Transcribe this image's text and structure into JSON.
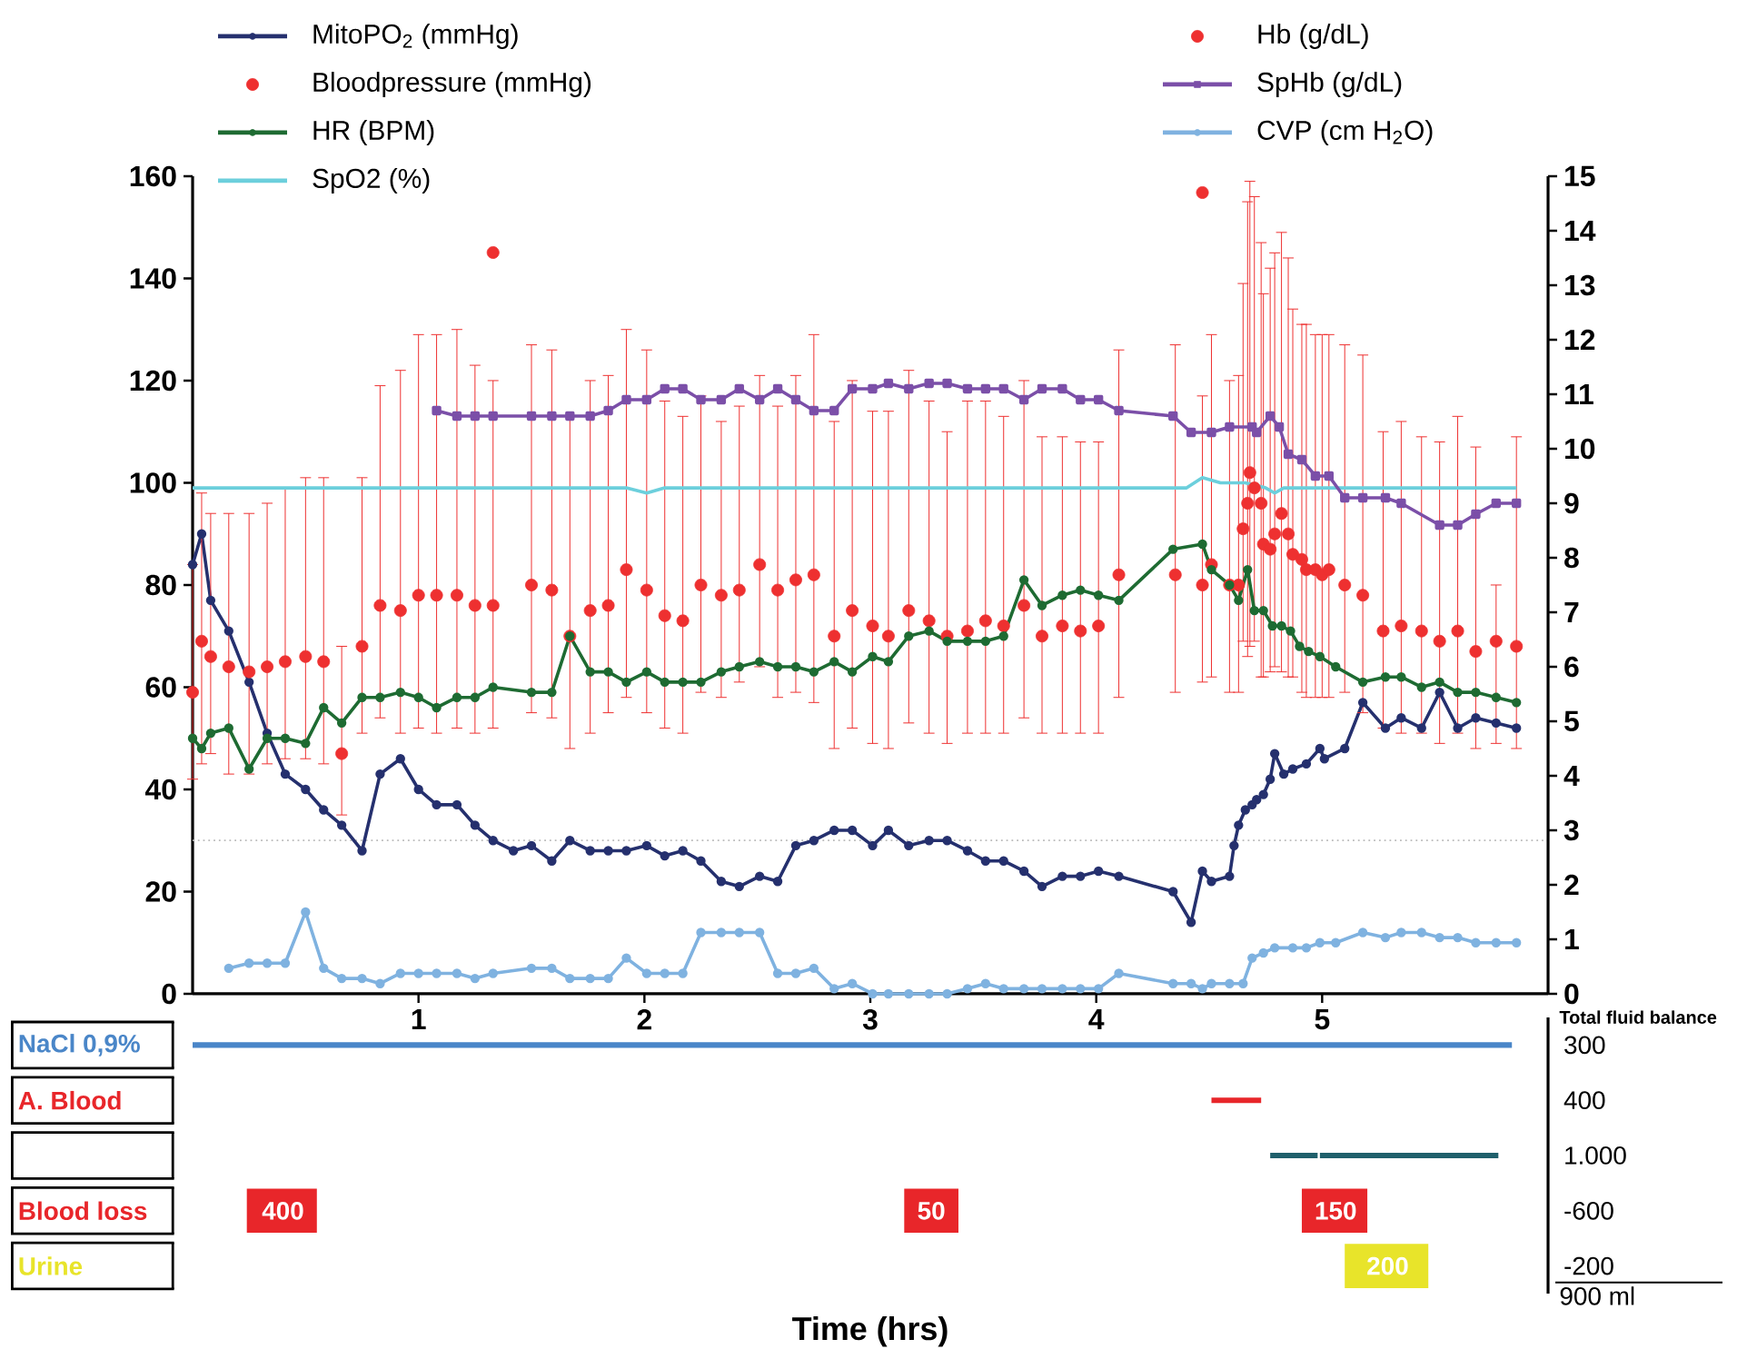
{
  "chart_data": [
    {
      "type": "line",
      "xlim": [
        0,
        6
      ],
      "xticks": [
        1,
        2,
        3,
        4,
        5
      ],
      "ylim": [
        0,
        160
      ],
      "yticks": [
        0,
        20,
        40,
        60,
        80,
        100,
        120,
        140,
        160
      ],
      "y2lim": [
        0,
        15
      ],
      "y2ticks": [
        0,
        1,
        2,
        3,
        4,
        5,
        6,
        7,
        8,
        9,
        10,
        11,
        12,
        13,
        14,
        15
      ],
      "legend": "top",
      "ref_lines": [
        {
          "axis": "y",
          "value": 30,
          "color": "#bbbbbb",
          "line_style": "dotted"
        }
      ],
      "series": [
        {
          "name": "MitoPO$_{2}$ (mmHg)",
          "color": "#25306e",
          "marker": "circle",
          "x": [
            0,
            0.04,
            0.08,
            0.16,
            0.25,
            0.33,
            0.41,
            0.5,
            0.58,
            0.66,
            0.75,
            0.83,
            0.92,
            1.0,
            1.08,
            1.17,
            1.25,
            1.33,
            1.42,
            1.5,
            1.59,
            1.67,
            1.76,
            1.84,
            1.92,
            2.01,
            2.09,
            2.17,
            2.25,
            2.34,
            2.42,
            2.51,
            2.59,
            2.67,
            2.75,
            2.84,
            2.92,
            3.01,
            3.08,
            3.17,
            3.26,
            3.34,
            3.43,
            3.51,
            3.59,
            3.68,
            3.76,
            3.85,
            3.93,
            4.01,
            4.1,
            4.34,
            4.42,
            4.47,
            4.51,
            4.59,
            4.61,
            4.63,
            4.66,
            4.69,
            4.71,
            4.74,
            4.77,
            4.79,
            4.83,
            4.87,
            4.93,
            4.99,
            5.01,
            5.1,
            5.18,
            5.28,
            5.35,
            5.44,
            5.52,
            5.6,
            5.68,
            5.77,
            5.86
          ],
          "values": [
            84,
            90,
            77,
            71,
            61,
            51,
            43,
            40,
            36,
            33,
            28,
            43,
            46,
            40,
            37,
            37,
            33,
            30,
            28,
            29,
            26,
            30,
            28,
            28,
            28,
            29,
            27,
            28,
            26,
            22,
            21,
            23,
            22,
            29,
            30,
            32,
            32,
            29,
            32,
            29,
            30,
            30,
            28,
            26,
            26,
            24,
            21,
            23,
            23,
            24,
            23,
            20,
            14,
            24,
            22,
            23,
            29,
            33,
            36,
            37,
            38,
            39,
            42,
            47,
            43,
            44,
            45,
            48,
            46,
            48,
            57,
            52,
            54,
            52,
            59,
            52,
            54,
            53,
            52
          ]
        },
        {
          "name": "Bloodpressure (mmHg)",
          "type": "scatter",
          "color": "#ee3030",
          "marker": "circle",
          "x": [
            0,
            0.04,
            0.08,
            0.16,
            0.25,
            0.33,
            0.41,
            0.5,
            0.58,
            0.66,
            0.75,
            0.83,
            0.92,
            1.0,
            1.08,
            1.17,
            1.25,
            1.33,
            1.5,
            1.59,
            1.67,
            1.76,
            1.84,
            1.92,
            2.01,
            2.09,
            2.17,
            2.25,
            2.34,
            2.42,
            2.51,
            2.59,
            2.67,
            2.75,
            2.84,
            2.92,
            3.01,
            3.08,
            3.17,
            3.26,
            3.34,
            3.43,
            3.51,
            3.59,
            3.68,
            3.76,
            3.85,
            3.93,
            4.01,
            4.1,
            4.35,
            4.47,
            4.51,
            4.59,
            4.63,
            4.65,
            4.67,
            4.68,
            4.7,
            4.73,
            4.74,
            4.77,
            4.79,
            4.82,
            4.85,
            4.87,
            4.91,
            4.93,
            4.97,
            5.0,
            5.03,
            5.1,
            5.18,
            5.27,
            5.35,
            5.44,
            5.52,
            5.6,
            5.68,
            5.77,
            5.86
          ],
          "values": [
            59,
            69,
            66,
            64,
            63,
            64,
            65,
            66,
            65,
            47,
            68,
            76,
            75,
            78,
            78,
            78,
            76,
            76,
            80,
            79,
            70,
            75,
            76,
            83,
            79,
            74,
            73,
            80,
            78,
            79,
            84,
            79,
            81,
            82,
            70,
            75,
            72,
            70,
            75,
            73,
            70,
            71,
            73,
            72,
            76,
            70,
            72,
            71,
            72,
            82,
            82,
            80,
            84,
            80,
            80,
            91,
            96,
            102,
            99,
            96,
            88,
            87,
            90,
            94,
            90,
            86,
            85,
            83,
            83,
            82,
            83,
            80,
            78,
            71,
            72,
            71,
            69,
            71,
            67,
            69,
            68
          ],
          "errors": [
            [
              42,
              84
            ],
            [
              45,
              98
            ],
            [
              47,
              94
            ],
            [
              43,
              94
            ],
            [
              43,
              94
            ],
            [
              45,
              96
            ],
            [
              46,
              99
            ],
            [
              46,
              101
            ],
            [
              45,
              101
            ],
            [
              35,
              68
            ],
            [
              51,
              101
            ],
            [
              54,
              119
            ],
            [
              51,
              122
            ],
            [
              52,
              129
            ],
            [
              51,
              129
            ],
            [
              52,
              130
            ],
            [
              51,
              123
            ],
            [
              52,
              120
            ],
            [
              55,
              127
            ],
            [
              54,
              126
            ],
            [
              48,
              113
            ],
            [
              51,
              120
            ],
            [
              55,
              121
            ],
            [
              58,
              130
            ],
            [
              55,
              126
            ],
            [
              52,
              116
            ],
            [
              51,
              113
            ],
            [
              59,
              117
            ],
            [
              58,
              112
            ],
            [
              61,
              115
            ],
            [
              64,
              121
            ],
            [
              58,
              115
            ],
            [
              59,
              121
            ],
            [
              57,
              129
            ],
            [
              48,
              112
            ],
            [
              52,
              120
            ],
            [
              49,
              114
            ],
            [
              48,
              114
            ],
            [
              53,
              122
            ],
            [
              51,
              116
            ],
            [
              49,
              110
            ],
            [
              51,
              116
            ],
            [
              51,
              116
            ],
            [
              51,
              113
            ],
            [
              54,
              120
            ],
            [
              51,
              109
            ],
            [
              51,
              109
            ],
            [
              51,
              108
            ],
            [
              51,
              108
            ],
            [
              58,
              126
            ],
            [
              59,
              127
            ],
            [
              61,
              117
            ],
            [
              62,
              129
            ],
            [
              59,
              120
            ],
            [
              59,
              121
            ],
            [
              69,
              139
            ],
            [
              66,
              155
            ],
            [
              68,
              159
            ],
            [
              69,
              156
            ],
            [
              62,
              147
            ],
            [
              62,
              137
            ],
            [
              63,
              142
            ],
            [
              64,
              145
            ],
            [
              63,
              149
            ],
            [
              62,
              144
            ],
            [
              62,
              134
            ],
            [
              59,
              131
            ],
            [
              58,
              131
            ],
            [
              58,
              129
            ],
            [
              58,
              129
            ],
            [
              58,
              129
            ],
            [
              59,
              127
            ],
            [
              55,
              125
            ],
            [
              52,
              110
            ],
            [
              51,
              112
            ],
            [
              51,
              109
            ],
            [
              49,
              108
            ],
            [
              51,
              113
            ],
            [
              48,
              107
            ],
            [
              49,
              80
            ],
            [
              48,
              109
            ]
          ]
        },
        {
          "name": "HR (BPM)",
          "color": "#1e6b32",
          "marker": "circle",
          "x": [
            0,
            0.04,
            0.08,
            0.16,
            0.25,
            0.33,
            0.41,
            0.5,
            0.58,
            0.66,
            0.75,
            0.83,
            0.92,
            1.0,
            1.08,
            1.17,
            1.25,
            1.33,
            1.5,
            1.59,
            1.67,
            1.76,
            1.84,
            1.92,
            2.01,
            2.09,
            2.17,
            2.25,
            2.34,
            2.42,
            2.51,
            2.59,
            2.67,
            2.75,
            2.84,
            2.92,
            3.01,
            3.08,
            3.17,
            3.26,
            3.34,
            3.43,
            3.51,
            3.59,
            3.68,
            3.76,
            3.85,
            3.93,
            4.01,
            4.1,
            4.34,
            4.47,
            4.51,
            4.59,
            4.63,
            4.67,
            4.7,
            4.74,
            4.78,
            4.82,
            4.86,
            4.9,
            4.94,
            4.99,
            5.06,
            5.18,
            5.28,
            5.35,
            5.44,
            5.52,
            5.6,
            5.68,
            5.77,
            5.86
          ],
          "values": [
            50,
            48,
            51,
            52,
            44,
            50,
            50,
            49,
            56,
            53,
            58,
            58,
            59,
            58,
            56,
            58,
            58,
            60,
            59,
            59,
            70,
            63,
            63,
            61,
            63,
            61,
            61,
            61,
            63,
            64,
            65,
            64,
            64,
            63,
            65,
            63,
            66,
            65,
            70,
            71,
            69,
            69,
            69,
            70,
            81,
            76,
            78,
            79,
            78,
            77,
            87,
            88,
            83,
            80,
            77,
            83,
            75,
            75,
            72,
            72,
            71,
            68,
            67,
            66,
            64,
            61,
            62,
            62,
            60,
            61,
            59,
            59,
            58,
            57
          ]
        },
        {
          "name": "SpO2 (%)",
          "color": "#6ccfdc",
          "marker": "none",
          "x": [
            0,
            1.92,
            2.01,
            2.09,
            4.4,
            4.47,
            4.55,
            4.66,
            4.75,
            4.79,
            4.83,
            5.86
          ],
          "values": [
            99,
            99,
            98,
            99,
            99,
            101,
            100,
            100,
            99,
            98,
            99,
            99
          ]
        },
        {
          "name": "Hb (g/dL)",
          "type": "scatter",
          "axis": "y2",
          "color": "#ee3030",
          "marker": "circle",
          "x": [
            1.33,
            4.47
          ],
          "values": [
            13.6,
            14.7
          ]
        },
        {
          "name": "SpHb (g/dL)",
          "axis": "y2",
          "color": "#7b4fa8",
          "marker": "square",
          "x": [
            1.08,
            1.17,
            1.25,
            1.33,
            1.5,
            1.59,
            1.67,
            1.76,
            1.84,
            1.92,
            2.01,
            2.09,
            2.17,
            2.25,
            2.34,
            2.42,
            2.51,
            2.59,
            2.67,
            2.75,
            2.84,
            2.92,
            3.01,
            3.08,
            3.17,
            3.26,
            3.34,
            3.43,
            3.51,
            3.59,
            3.68,
            3.76,
            3.85,
            3.93,
            4.01,
            4.1,
            4.34,
            4.42,
            4.51,
            4.59,
            4.69,
            4.71,
            4.77,
            4.81,
            4.85,
            4.91,
            4.97,
            5.03,
            5.1,
            5.18,
            5.28,
            5.35,
            5.52,
            5.6,
            5.68,
            5.77,
            5.86
          ],
          "values": [
            10.7,
            10.6,
            10.6,
            10.6,
            10.6,
            10.6,
            10.6,
            10.6,
            10.7,
            10.9,
            10.9,
            11.1,
            11.1,
            10.9,
            10.9,
            11.1,
            10.9,
            11.1,
            10.9,
            10.7,
            10.7,
            11.1,
            11.1,
            11.2,
            11.1,
            11.2,
            11.2,
            11.1,
            11.1,
            11.1,
            10.9,
            11.1,
            11.1,
            10.9,
            10.9,
            10.7,
            10.6,
            10.3,
            10.3,
            10.4,
            10.4,
            10.3,
            10.6,
            10.4,
            9.9,
            9.8,
            9.5,
            9.5,
            9.1,
            9.1,
            9.1,
            9.0,
            8.6,
            8.6,
            8.8,
            9.0,
            9.0
          ]
        },
        {
          "name": "CVP (cm H$_{2}$O)",
          "color": "#7fb2e0",
          "marker": "circle",
          "x": [
            0.16,
            0.25,
            0.33,
            0.41,
            0.5,
            0.58,
            0.66,
            0.75,
            0.83,
            0.92,
            1.0,
            1.08,
            1.17,
            1.25,
            1.33,
            1.5,
            1.59,
            1.67,
            1.76,
            1.84,
            1.92,
            2.01,
            2.09,
            2.17,
            2.25,
            2.34,
            2.42,
            2.51,
            2.59,
            2.67,
            2.75,
            2.84,
            2.92,
            3.01,
            3.08,
            3.17,
            3.26,
            3.34,
            3.43,
            3.51,
            3.59,
            3.68,
            3.76,
            3.85,
            3.93,
            4.01,
            4.1,
            4.34,
            4.42,
            4.47,
            4.51,
            4.59,
            4.65,
            4.69,
            4.74,
            4.79,
            4.87,
            4.93,
            4.99,
            5.06,
            5.18,
            5.28,
            5.35,
            5.44,
            5.52,
            5.6,
            5.68,
            5.77,
            5.86
          ],
          "values": [
            5,
            6,
            6,
            6,
            16,
            5,
            3,
            3,
            2,
            4,
            4,
            4,
            4,
            3,
            4,
            5,
            5,
            3,
            3,
            3,
            7,
            4,
            4,
            4,
            12,
            12,
            12,
            12,
            4,
            4,
            5,
            1,
            2,
            0,
            0,
            0,
            0,
            0,
            1,
            2,
            1,
            1,
            1,
            1,
            1,
            1,
            4,
            2,
            2,
            1,
            2,
            2,
            2,
            7,
            8,
            9,
            9,
            9,
            10,
            10,
            12,
            11,
            12,
            12,
            11,
            11,
            10,
            10,
            10
          ]
        }
      ]
    },
    {
      "type": "bar",
      "orientation": "horizontal",
      "xlim": [
        0,
        6
      ],
      "tick_labels": "y",
      "xlabel": "Time (hrs)",
      "categories": [
        "NaCl 0,9%",
        "A. Blood",
        null,
        "Blood loss",
        "Urine"
      ],
      "annotations": [
        "Total fluid balance",
        "300",
        "400",
        "1.000",
        "-600",
        "-200",
        "900 ml",
        {
          "text": "400",
          "x": 0.4,
          "y": "Blood loss"
        },
        {
          "text": "50",
          "x": 3.27,
          "y": "Blood loss"
        },
        {
          "text": "150",
          "x": 5.06,
          "y": "Blood loss"
        },
        {
          "text": "200",
          "x": 5.29,
          "y": "Urine"
        }
      ],
      "series": [
        {
          "color": "#4a86c8",
          "values": [
            5.84,
            null,
            null,
            null,
            null
          ],
          "base": [
            0,
            null,
            null,
            null,
            null
          ]
        },
        {
          "color": "#e8262a",
          "values": [
            null,
            0.22,
            null,
            null,
            null
          ],
          "base": [
            null,
            4.51,
            null,
            null,
            null
          ]
        },
        {
          "color": "#1f5f6b",
          "values": [
            null,
            null,
            0.21,
            null,
            null
          ],
          "base": [
            null,
            null,
            4.77,
            null,
            null
          ]
        },
        {
          "color": "#1f5f6b",
          "values": [
            null,
            null,
            0.79,
            null,
            null
          ],
          "base": [
            null,
            null,
            4.99,
            null,
            null
          ]
        },
        {
          "color": "#e8262a",
          "values": [
            null,
            null,
            null,
            0.31,
            null
          ],
          "base": [
            null,
            null,
            null,
            0.24,
            null
          ]
        },
        {
          "color": "#e8262a",
          "values": [
            null,
            null,
            null,
            0.24,
            null
          ],
          "base": [
            null,
            null,
            null,
            3.15,
            null
          ]
        },
        {
          "color": "#e8262a",
          "values": [
            null,
            null,
            null,
            0.29,
            null
          ],
          "base": [
            null,
            null,
            null,
            4.91,
            null
          ]
        },
        {
          "color": "#e8e42a",
          "values": [
            null,
            null,
            null,
            null,
            0.37
          ],
          "base": [
            null,
            null,
            null,
            null,
            5.1
          ]
        }
      ]
    }
  ]
}
